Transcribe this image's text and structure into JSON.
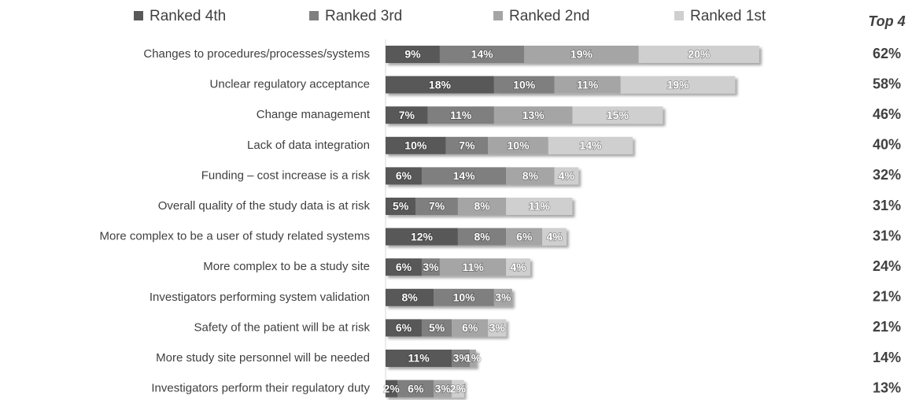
{
  "chart_data": {
    "type": "stacked-bar-horizontal",
    "categories": [
      "Changes to procedures/processes/systems",
      "Unclear regulatory acceptance",
      "Change management",
      "Lack of data integration",
      "Funding – cost increase is a risk",
      "Overall quality of the study data is at risk",
      "More complex to be a user of study related systems",
      "More complex to be a study site",
      "Investigators performing system validation",
      "Safety of the patient will be at risk",
      "More study site personnel will be needed",
      "Investigators perform their regulatory duty"
    ],
    "series": [
      {
        "name": "Ranked 4th",
        "color": "#595959",
        "values": [
          9,
          18,
          7,
          10,
          6,
          5,
          12,
          6,
          8,
          6,
          11,
          2
        ],
        "value_labels": [
          "9%",
          "18%",
          "7%",
          "10%",
          "6%",
          "5%",
          "12%",
          "6%",
          "8%",
          "6%",
          "11%",
          "2%"
        ]
      },
      {
        "name": "Ranked 3rd",
        "color": "#7f7f7f",
        "values": [
          14,
          10,
          11,
          7,
          14,
          7,
          8,
          3,
          10,
          5,
          3,
          6
        ],
        "value_labels": [
          "14%",
          "10%",
          "11%",
          "7%",
          "14%",
          "7%",
          "8%",
          "3%",
          "10%",
          "5%",
          "3%",
          "6%"
        ]
      },
      {
        "name": "Ranked 2nd",
        "color": "#a5a5a5",
        "values": [
          19,
          11,
          13,
          10,
          8,
          8,
          6,
          11,
          3,
          6,
          1,
          3
        ],
        "value_labels": [
          "19%",
          "11%",
          "13%",
          "10%",
          "8%",
          "8%",
          "6%",
          "11%",
          "3%",
          "6%",
          "1%",
          "3%"
        ]
      },
      {
        "name": "Ranked 1st",
        "color": "#cfcfcf",
        "values": [
          20,
          19,
          15,
          14,
          4,
          11,
          4,
          4,
          null,
          3,
          null,
          2
        ],
        "value_labels": [
          "20%",
          "19%",
          "15%",
          "14%",
          "4%",
          "11%",
          "4%",
          "4%",
          null,
          "3%",
          null,
          "2%"
        ]
      }
    ],
    "total_header": "Top 4",
    "totals": [
      "62%",
      "58%",
      "46%",
      "40%",
      "32%",
      "31%",
      "31%",
      "24%",
      "21%",
      "21%",
      "14%",
      "13%"
    ]
  }
}
